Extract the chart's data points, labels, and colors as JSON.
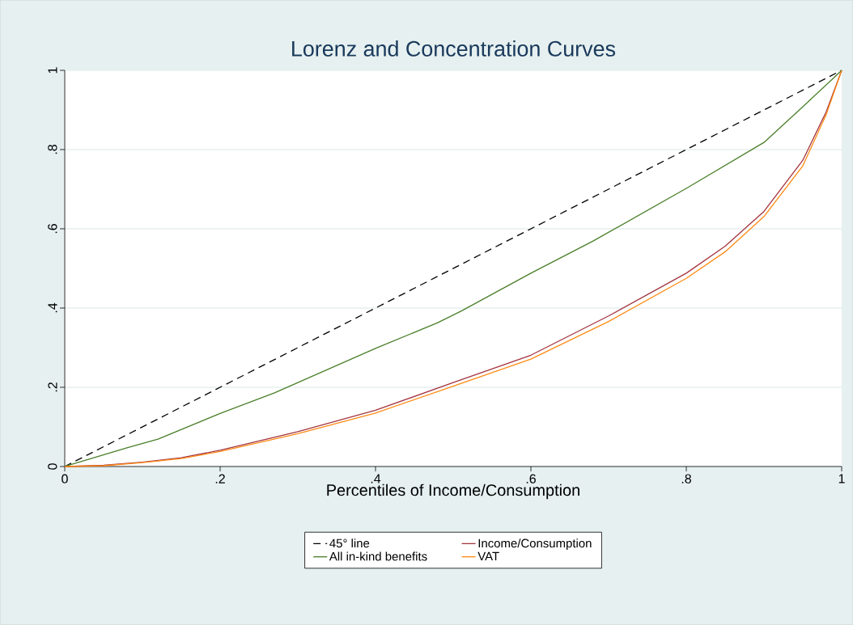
{
  "chart_data": {
    "type": "line",
    "title": "Lorenz and Concentration Curves",
    "xlabel": "Percentiles of Income/Consumption",
    "xlim": [
      0,
      1
    ],
    "ylim": [
      0,
      1
    ],
    "xticks": [
      0,
      {
        "value": 0.2,
        "label": ".2"
      },
      {
        "value": 0.4,
        "label": ".4"
      },
      {
        "value": 0.6,
        "label": ".6"
      },
      {
        "value": 0.8,
        "label": ".8"
      },
      1
    ],
    "yticks": [
      0,
      {
        "value": 0.2,
        "label": ".2"
      },
      {
        "value": 0.4,
        "label": ".4"
      },
      {
        "value": 0.6,
        "label": ".6"
      },
      {
        "value": 0.8,
        "label": ".8"
      },
      1
    ],
    "grid": "y",
    "legend": "bottom",
    "marker": "none",
    "series": [
      {
        "name": "45° line",
        "color": "#000000",
        "line_style": "dashed",
        "x": [
          0,
          1
        ],
        "values": [
          0,
          1
        ]
      },
      {
        "name": "Income/Consumption",
        "color": "#a3343f",
        "line_style": "solid",
        "x": [
          0,
          0.05,
          0.1,
          0.15,
          0.2,
          0.3,
          0.4,
          0.5,
          0.6,
          0.7,
          0.8,
          0.85,
          0.9,
          0.95,
          0.98,
          1
        ],
        "values": [
          0,
          0.003,
          0.011,
          0.022,
          0.041,
          0.088,
          0.142,
          0.212,
          0.281,
          0.38,
          0.488,
          0.556,
          0.644,
          0.773,
          0.895,
          1
        ]
      },
      {
        "name": "All in-kind benefits",
        "color": "#4a7f2a",
        "line_style": "solid",
        "x": [
          0,
          0.08,
          0.12,
          0.2,
          0.27,
          0.4,
          0.48,
          0.51,
          0.6,
          0.68,
          0.8,
          0.9,
          0.95,
          1
        ],
        "values": [
          0,
          0.047,
          0.069,
          0.134,
          0.186,
          0.298,
          0.363,
          0.392,
          0.488,
          0.569,
          0.702,
          0.818,
          0.908,
          1
        ]
      },
      {
        "name": "VAT",
        "color": "#ff8a14",
        "line_style": "solid",
        "x": [
          0,
          0.05,
          0.1,
          0.15,
          0.2,
          0.3,
          0.4,
          0.5,
          0.6,
          0.7,
          0.8,
          0.85,
          0.9,
          0.95,
          0.98,
          1
        ],
        "values": [
          0,
          0.002,
          0.01,
          0.02,
          0.038,
          0.083,
          0.135,
          0.203,
          0.271,
          0.366,
          0.475,
          0.542,
          0.631,
          0.759,
          0.888,
          1
        ]
      }
    ]
  }
}
